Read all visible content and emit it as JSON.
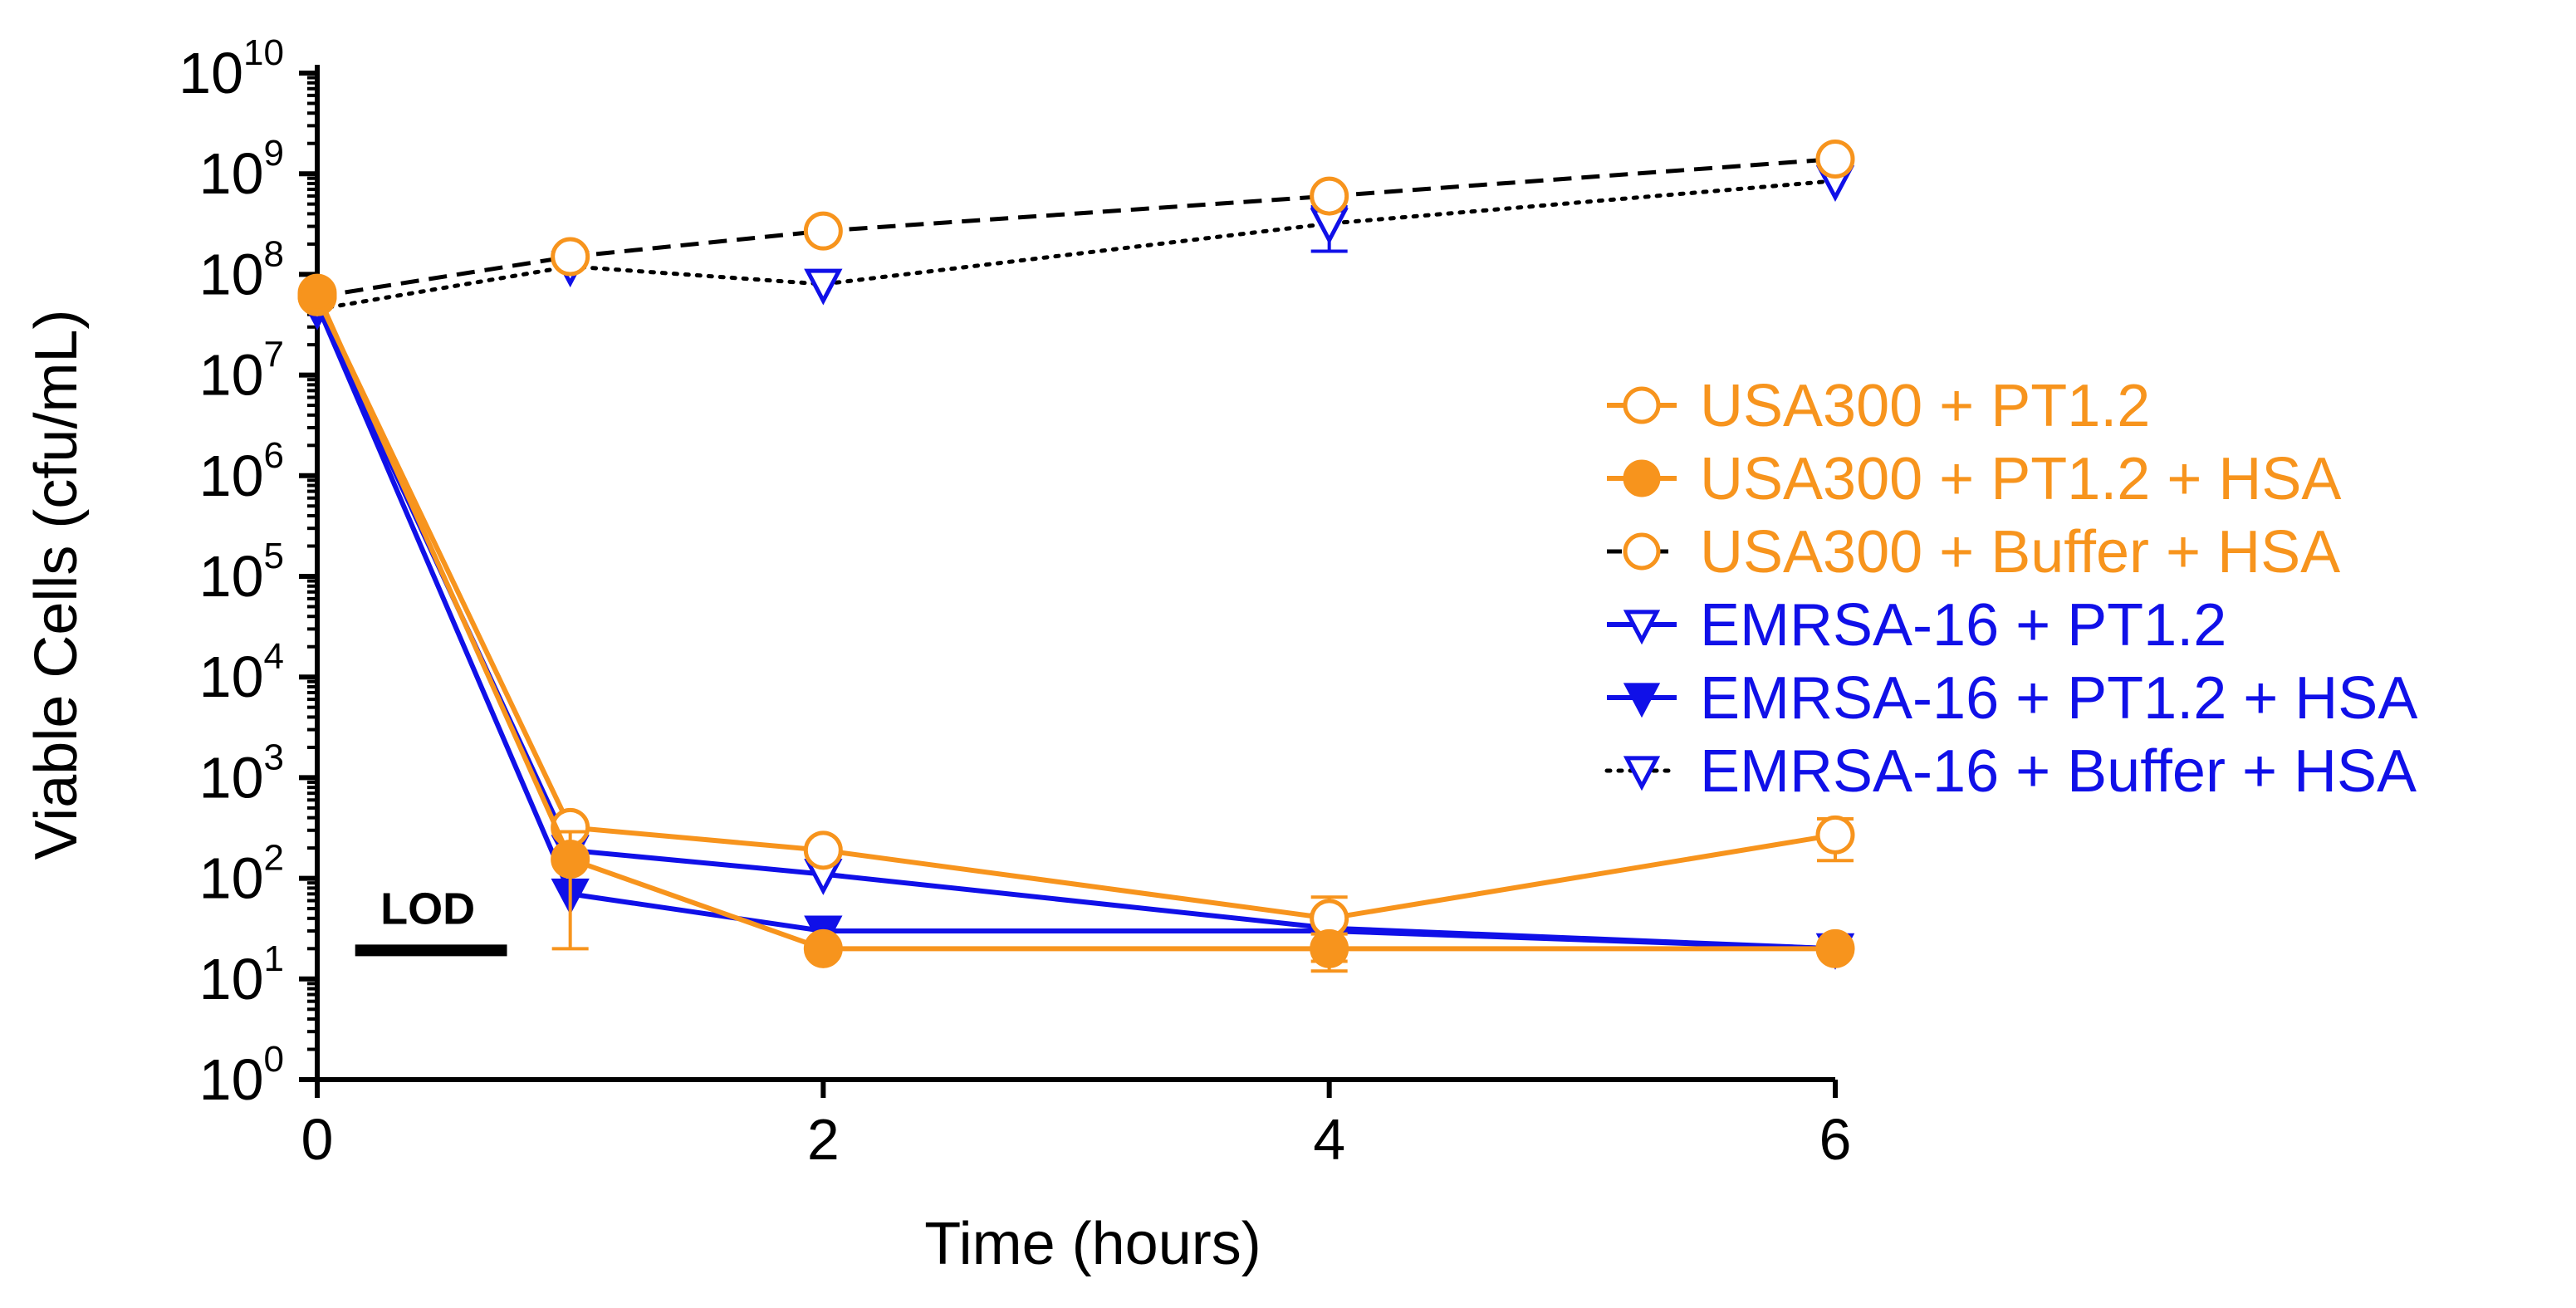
{
  "chart_data": {
    "type": "line",
    "title": "",
    "xlabel": "Time (hours)",
    "ylabel": "Viable Cells (cfu/mL)",
    "xlim": [
      0,
      6
    ],
    "ylim": [
      1,
      10000000000
    ],
    "y_scale": "log",
    "x_ticks": [
      0,
      2,
      4,
      6
    ],
    "y_ticks": [
      {
        "base": "10",
        "exp": "0",
        "value": 1
      },
      {
        "base": "10",
        "exp": "1",
        "value": 10
      },
      {
        "base": "10",
        "exp": "2",
        "value": 100
      },
      {
        "base": "10",
        "exp": "3",
        "value": 1000
      },
      {
        "base": "10",
        "exp": "4",
        "value": 10000
      },
      {
        "base": "10",
        "exp": "5",
        "value": 100000
      },
      {
        "base": "10",
        "exp": "6",
        "value": 1000000
      },
      {
        "base": "10",
        "exp": "7",
        "value": 10000000
      },
      {
        "base": "10",
        "exp": "8",
        "value": 100000000
      },
      {
        "base": "10",
        "exp": "9",
        "value": 1000000000
      },
      {
        "base": "10",
        "exp": "10",
        "value": 10000000000
      }
    ],
    "lod": {
      "label": "LOD",
      "value": 20,
      "x_range": [
        0.15,
        0.75
      ]
    },
    "legend_position": "right",
    "series": [
      {
        "name": "USA300 + PT1.2",
        "color": "#F7941D",
        "marker": "circle-open",
        "line": "solid",
        "x": [
          0,
          1,
          2,
          4,
          6
        ],
        "y": [
          60000000,
          320,
          190,
          40,
          270
        ],
        "err": [
          null,
          null,
          null,
          25,
          120
        ]
      },
      {
        "name": "USA300 + PT1.2 + HSA",
        "color": "#F7941D",
        "marker": "circle-filled",
        "line": "solid",
        "x": [
          0,
          1,
          2,
          4,
          6
        ],
        "y": [
          65000000,
          155,
          20,
          20,
          20
        ],
        "err": [
          null,
          135,
          null,
          8,
          null
        ]
      },
      {
        "name": "USA300 + Buffer + HSA",
        "color": "#F7941D",
        "line_color": "#000000",
        "marker": "circle-open",
        "line": "dashed",
        "x": [
          0,
          1,
          2,
          4,
          6
        ],
        "y": [
          60000000,
          150000000,
          270000000,
          600000000,
          1400000000
        ],
        "err": [
          null,
          null,
          null,
          null,
          null
        ]
      },
      {
        "name": "EMRSA-16 + PT1.2",
        "color": "#1010E8",
        "marker": "triangle-down-open",
        "line": "solid",
        "x": [
          0,
          1,
          2,
          4,
          6
        ],
        "y": [
          50000000,
          190,
          110,
          32,
          20
        ],
        "err": [
          null,
          null,
          null,
          null,
          null
        ]
      },
      {
        "name": "EMRSA-16 + PT1.2 + HSA",
        "color": "#1010E8",
        "marker": "triangle-down-filled",
        "line": "solid",
        "x": [
          0,
          1,
          2,
          4,
          6
        ],
        "y": [
          50000000,
          70,
          30,
          30,
          20
        ],
        "err": [
          null,
          null,
          null,
          null,
          null
        ]
      },
      {
        "name": "EMRSA-16 + Buffer + HSA",
        "color": "#1010E8",
        "line_color": "#000000",
        "marker": "triangle-down-open",
        "line": "dotted",
        "x": [
          0,
          1,
          2,
          4,
          6
        ],
        "y": [
          45000000,
          120000000,
          80000000,
          320000000,
          850000000
        ],
        "err": [
          null,
          null,
          null,
          150000000,
          null
        ]
      }
    ]
  }
}
